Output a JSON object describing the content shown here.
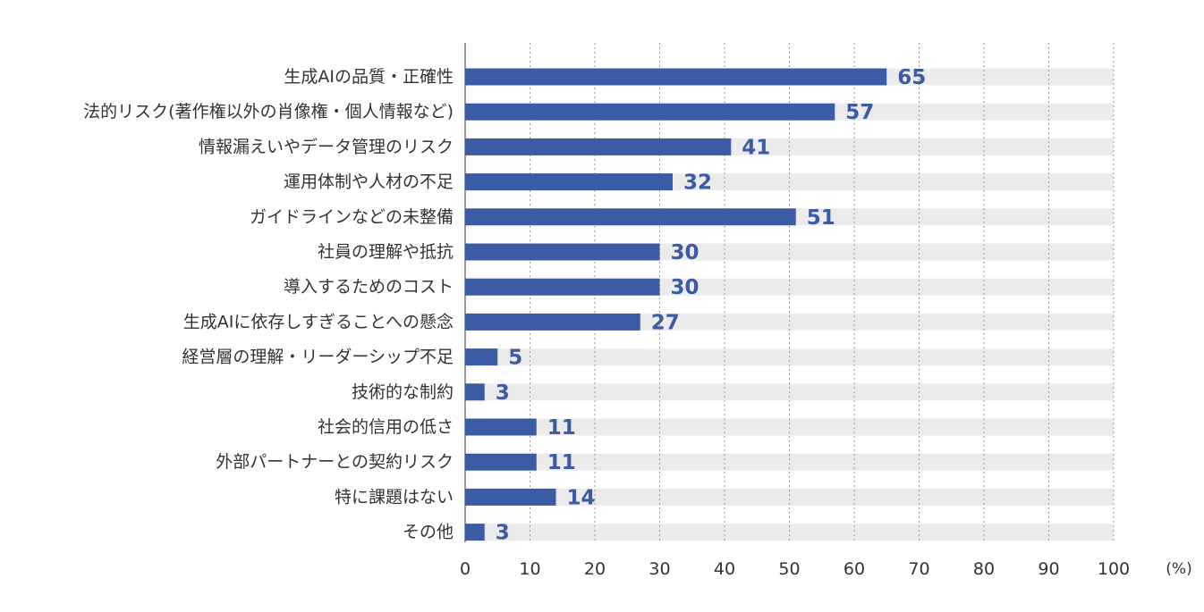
{
  "chart_data": {
    "type": "bar",
    "orientation": "horizontal",
    "categories": [
      "生成AIの品質・正確性",
      "法的リスク(著作権以外の肖像権・個人情報など)",
      "情報漏えいやデータ管理のリスク",
      "運用体制や人材の不足",
      "ガイドラインなどの未整備",
      "社員の理解や抵抗",
      "導入するためのコスト",
      "生成AIに依存しすぎることへの懸念",
      "経営層の理解・リーダーシップ不足",
      "技術的な制約",
      "社会的信用の低さ",
      "外部パートナーとの契約リスク",
      "特に課題はない",
      "その他"
    ],
    "values": [
      65,
      57,
      41,
      32,
      51,
      30,
      30,
      27,
      5,
      3,
      11,
      11,
      14,
      3
    ],
    "x_ticks": [
      "0",
      "10",
      "20",
      "30",
      "40",
      "50",
      "60",
      "70",
      "80",
      "90",
      "100"
    ],
    "xlim": [
      0,
      100
    ],
    "unit": "(%)",
    "title": "",
    "xlabel": "",
    "ylabel": "",
    "grid": "vertical dotted",
    "legend": "none",
    "colors": {
      "bar": "#3b5ba5",
      "track": "#ebebeb",
      "value_text": "#3b5ba5",
      "label_text": "#333333",
      "grid": "#9a9a9a",
      "axis": "#555555"
    }
  }
}
